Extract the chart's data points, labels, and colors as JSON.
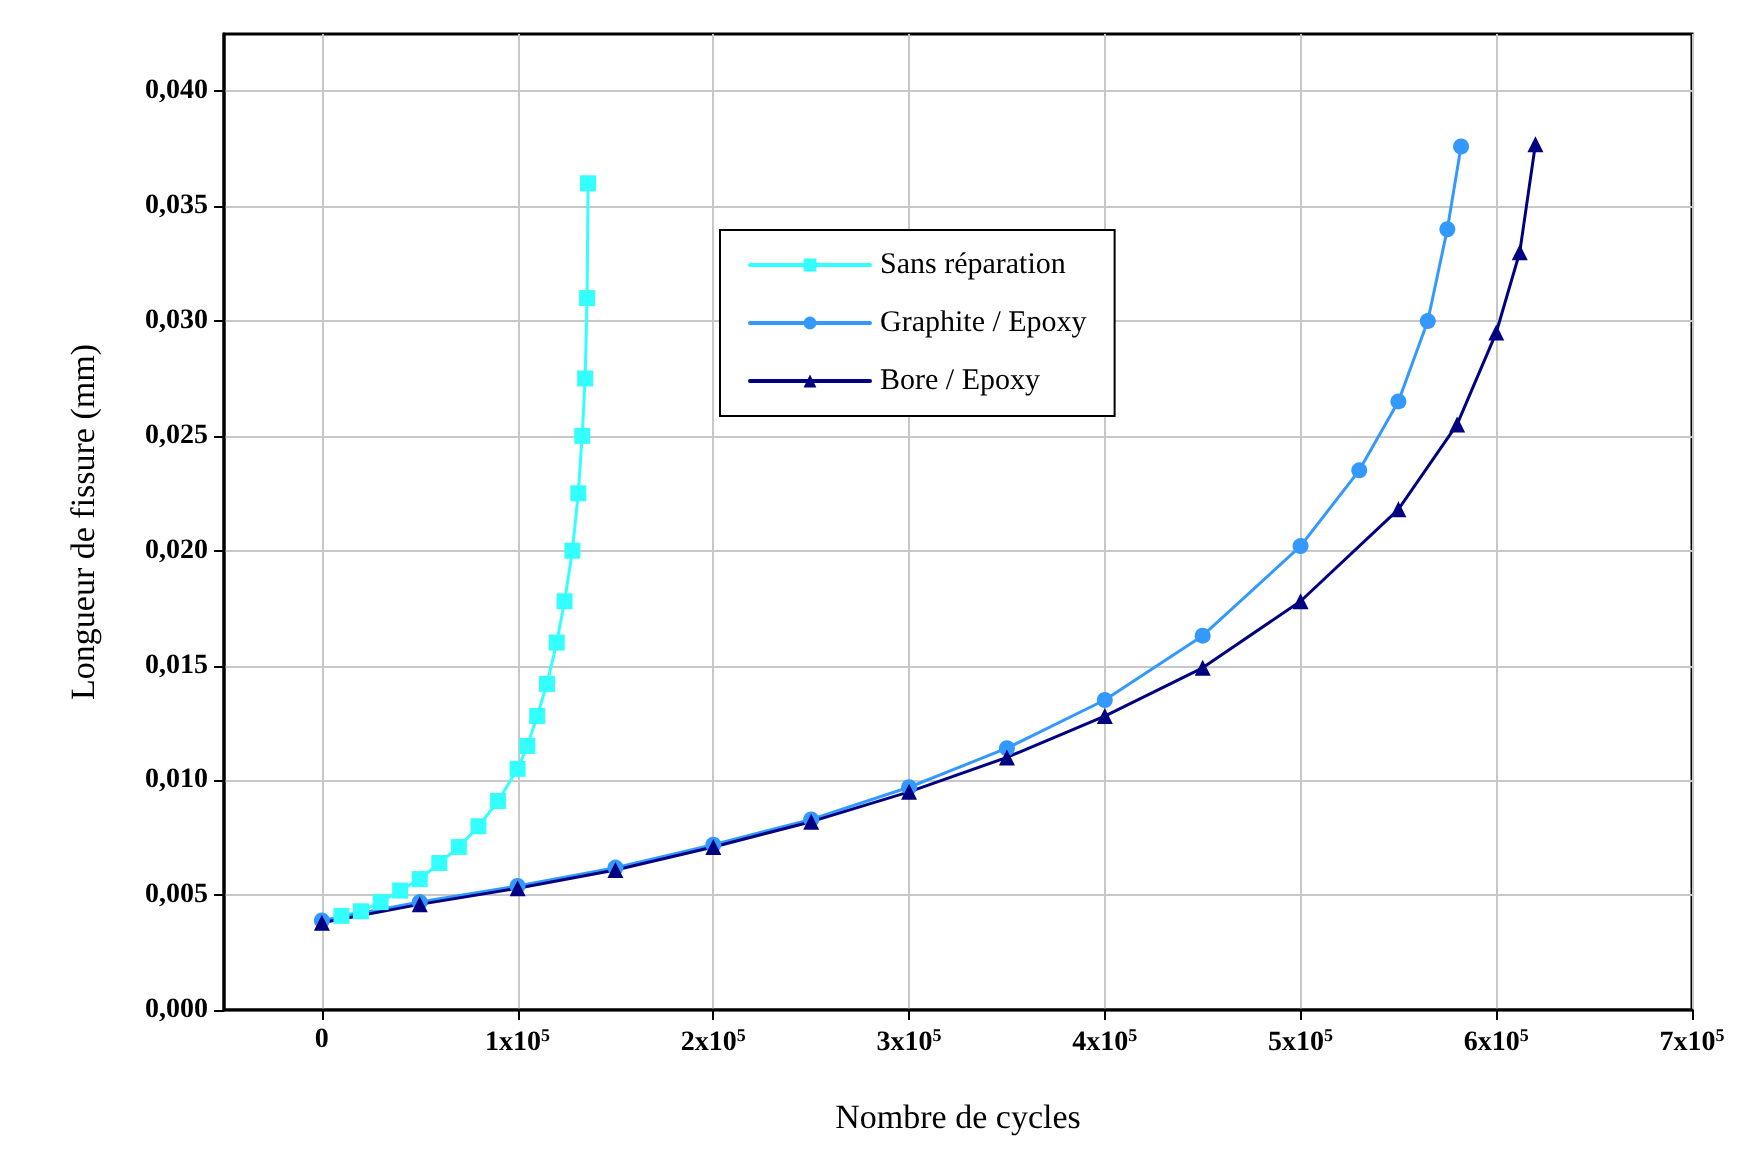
{
  "chart_data": {
    "type": "line",
    "xlabel": "Nombre de cycles",
    "ylabel": "Longueur de fissure (mm)",
    "xlim": [
      -50000,
      700000
    ],
    "xticks": [
      {
        "value": 0,
        "label": "0"
      },
      {
        "value": 100000,
        "label": "1x10$^{5}$"
      },
      {
        "value": 200000,
        "label": "2x10$^{5}$"
      },
      {
        "value": 300000,
        "label": "3x10$^{5}$"
      },
      {
        "value": 400000,
        "label": "4x10$^{5}$"
      },
      {
        "value": 500000,
        "label": "5x10$^{5}$"
      },
      {
        "value": 600000,
        "label": "6x10$^{5}$"
      },
      {
        "value": 700000,
        "label": "7x10$^{5}$"
      }
    ],
    "ylim": [
      0,
      0.0425
    ],
    "yticks": [
      {
        "value": 0,
        "label": "0,000"
      },
      {
        "value": 0.005,
        "label": "0,005"
      },
      {
        "value": 0.01,
        "label": "0,010"
      },
      {
        "value": 0.015,
        "label": "0,015"
      },
      {
        "value": 0.02,
        "label": "0,020"
      },
      {
        "value": 0.025,
        "label": "0,025"
      },
      {
        "value": 0.03,
        "label": "0,030"
      },
      {
        "value": 0.035,
        "label": "0,035"
      },
      {
        "value": 0.04,
        "label": "0,040"
      }
    ],
    "grid": true,
    "legend": "top",
    "line_style": "solid",
    "series": [
      {
        "name": "Sans réparation",
        "color": "#33ffff",
        "marker": "square",
        "x": [
          10000,
          20000,
          30000,
          40000,
          50000,
          60000,
          70000,
          80000,
          90000,
          100000,
          105000,
          110000,
          115000,
          120000,
          124000,
          128000,
          131000,
          133000,
          134500,
          135500,
          136000
        ],
        "values": [
          0.0041,
          0.0043,
          0.0047,
          0.0052,
          0.0057,
          0.0064,
          0.0071,
          0.008,
          0.0091,
          0.0105,
          0.0115,
          0.0128,
          0.0142,
          0.016,
          0.0178,
          0.02,
          0.0225,
          0.025,
          0.0275,
          0.031,
          0.036
        ]
      },
      {
        "name": "Graphite / Epoxy",
        "color": "#3399ff",
        "marker": "circle",
        "x": [
          0,
          50000,
          100000,
          150000,
          200000,
          250000,
          300000,
          350000,
          400000,
          450000,
          500000,
          530000,
          550000,
          565000,
          575000,
          582000
        ],
        "values": [
          0.0039,
          0.0047,
          0.0054,
          0.0062,
          0.0072,
          0.0083,
          0.0097,
          0.0114,
          0.0135,
          0.0163,
          0.0202,
          0.0235,
          0.0265,
          0.03,
          0.034,
          0.0376
        ]
      },
      {
        "name": "Bore / Epoxy",
        "color": "#000080",
        "marker": "triangle",
        "x": [
          0,
          50000,
          100000,
          150000,
          200000,
          250000,
          300000,
          350000,
          400000,
          450000,
          500000,
          550000,
          580000,
          600000,
          612000,
          620000
        ],
        "values": [
          0.0038,
          0.0046,
          0.0053,
          0.0061,
          0.0071,
          0.0082,
          0.0095,
          0.011,
          0.0128,
          0.0149,
          0.0178,
          0.0218,
          0.0255,
          0.0295,
          0.033,
          0.0377
        ]
      }
    ]
  }
}
